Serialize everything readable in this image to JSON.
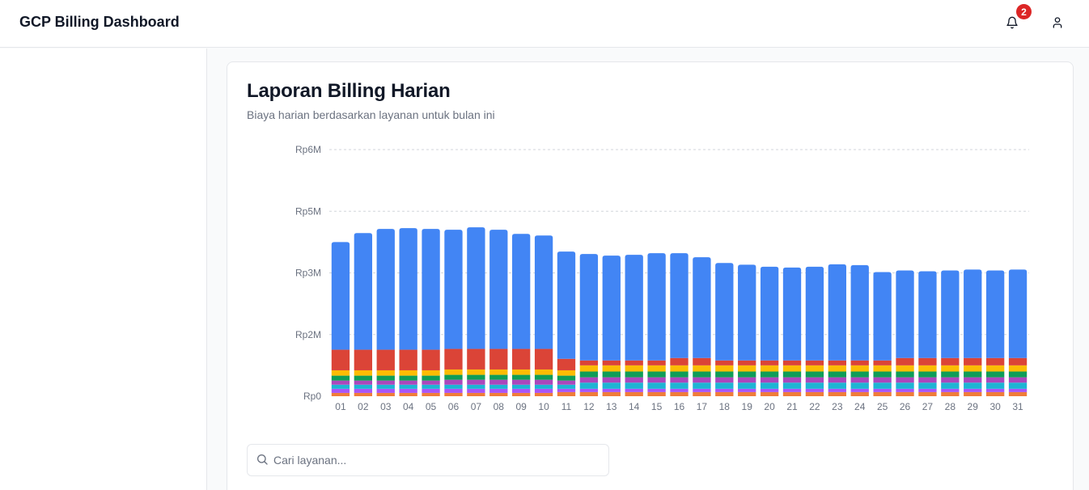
{
  "header": {
    "title": "GCP Billing Dashboard",
    "notification_count": "2"
  },
  "icons": {
    "bell": "bell-icon",
    "user": "user-icon",
    "search": "search-icon"
  },
  "card": {
    "title": "Laporan Billing Harian",
    "subtitle": "Biaya harian berdasarkan layanan untuk bulan ini"
  },
  "search": {
    "placeholder": "Cari layanan...",
    "value": ""
  },
  "chart_data": {
    "type": "bar",
    "stacked": true,
    "grid": true,
    "y_ticks": [
      {
        "label": "Rp0",
        "value": 0
      },
      {
        "label": "Rp2M",
        "value": 1.5
      },
      {
        "label": "Rp3M",
        "value": 3
      },
      {
        "label": "Rp5M",
        "value": 4.5
      },
      {
        "label": "Rp6M",
        "value": 6
      }
    ],
    "ylim": [
      0,
      6
    ],
    "categories": [
      "01",
      "02",
      "03",
      "04",
      "05",
      "06",
      "07",
      "08",
      "09",
      "10",
      "11",
      "12",
      "13",
      "14",
      "15",
      "16",
      "17",
      "18",
      "19",
      "20",
      "21",
      "22",
      "23",
      "24",
      "25",
      "26",
      "27",
      "28",
      "29",
      "30",
      "31"
    ],
    "series": [
      {
        "color": "#ef7c3a",
        "values": [
          0.08,
          0.08,
          0.08,
          0.08,
          0.08,
          0.08,
          0.08,
          0.08,
          0.08,
          0.08,
          0.1,
          0.1,
          0.1,
          0.1,
          0.1,
          0.1,
          0.1,
          0.1,
          0.1,
          0.1,
          0.1,
          0.1,
          0.1,
          0.1,
          0.1,
          0.1,
          0.1,
          0.1,
          0.1,
          0.1,
          0.1
        ]
      },
      {
        "color": "#a855f7",
        "values": [
          0.1,
          0.1,
          0.1,
          0.1,
          0.1,
          0.1,
          0.1,
          0.1,
          0.1,
          0.1,
          0.08,
          0.08,
          0.08,
          0.08,
          0.08,
          0.08,
          0.08,
          0.08,
          0.08,
          0.08,
          0.08,
          0.08,
          0.08,
          0.08,
          0.08,
          0.08,
          0.08,
          0.08,
          0.08,
          0.08,
          0.08
        ]
      },
      {
        "color": "#1eb4d4",
        "values": [
          0.1,
          0.1,
          0.1,
          0.1,
          0.1,
          0.1,
          0.1,
          0.1,
          0.1,
          0.1,
          0.1,
          0.15,
          0.15,
          0.15,
          0.15,
          0.15,
          0.15,
          0.15,
          0.15,
          0.15,
          0.15,
          0.15,
          0.15,
          0.15,
          0.15,
          0.15,
          0.15,
          0.15,
          0.15,
          0.15,
          0.15
        ]
      },
      {
        "color": "#ab47bc",
        "values": [
          0.1,
          0.1,
          0.1,
          0.1,
          0.1,
          0.12,
          0.12,
          0.12,
          0.12,
          0.12,
          0.1,
          0.13,
          0.13,
          0.13,
          0.13,
          0.13,
          0.13,
          0.13,
          0.13,
          0.13,
          0.13,
          0.13,
          0.13,
          0.13,
          0.13,
          0.13,
          0.13,
          0.13,
          0.13,
          0.13,
          0.13
        ]
      },
      {
        "color": "#0f9d58",
        "values": [
          0.12,
          0.12,
          0.12,
          0.12,
          0.12,
          0.12,
          0.12,
          0.12,
          0.12,
          0.12,
          0.12,
          0.14,
          0.14,
          0.14,
          0.14,
          0.14,
          0.14,
          0.14,
          0.14,
          0.14,
          0.14,
          0.14,
          0.14,
          0.14,
          0.14,
          0.14,
          0.14,
          0.14,
          0.14,
          0.14,
          0.14
        ]
      },
      {
        "color": "#fbbc04",
        "values": [
          0.13,
          0.13,
          0.13,
          0.13,
          0.13,
          0.13,
          0.13,
          0.13,
          0.13,
          0.13,
          0.13,
          0.15,
          0.15,
          0.15,
          0.15,
          0.15,
          0.15,
          0.15,
          0.15,
          0.15,
          0.15,
          0.15,
          0.15,
          0.15,
          0.15,
          0.15,
          0.15,
          0.15,
          0.15,
          0.15,
          0.15
        ]
      },
      {
        "color": "#db4437",
        "values": [
          0.5,
          0.5,
          0.5,
          0.5,
          0.5,
          0.5,
          0.5,
          0.5,
          0.5,
          0.5,
          0.28,
          0.12,
          0.12,
          0.12,
          0.12,
          0.18,
          0.18,
          0.12,
          0.12,
          0.12,
          0.12,
          0.12,
          0.12,
          0.12,
          0.12,
          0.18,
          0.18,
          0.18,
          0.18,
          0.18,
          0.18
        ]
      },
      {
        "color": "#4285f4",
        "values": [
          2.62,
          2.84,
          2.94,
          2.96,
          2.94,
          2.9,
          2.96,
          2.9,
          2.8,
          2.76,
          2.61,
          2.59,
          2.55,
          2.57,
          2.61,
          2.55,
          2.45,
          2.37,
          2.33,
          2.28,
          2.26,
          2.28,
          2.34,
          2.32,
          2.15,
          2.13,
          2.11,
          2.13,
          2.15,
          2.13,
          2.15
        ]
      }
    ]
  }
}
